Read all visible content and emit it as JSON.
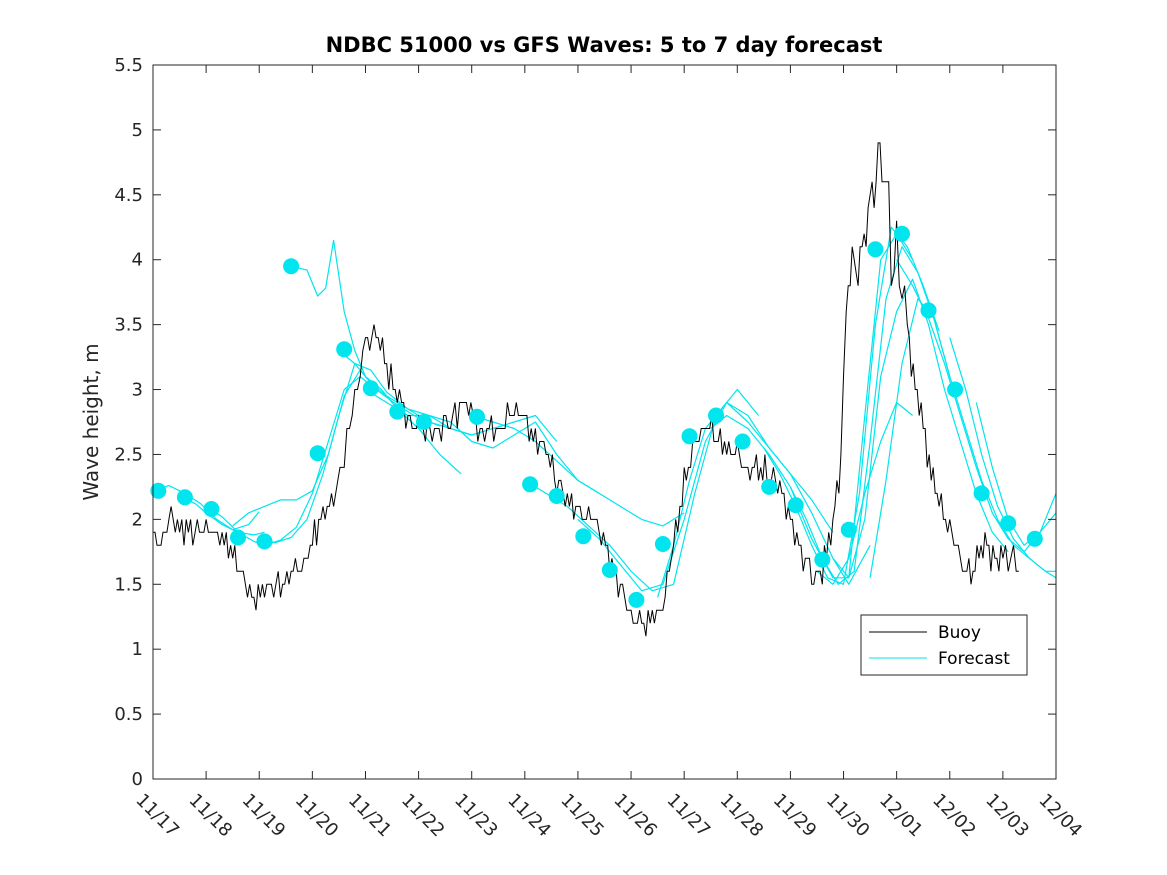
{
  "chart_data": {
    "type": "line",
    "title": "NDBC 51000 vs GFS Waves: 5 to 7 day forecast",
    "xlabel": "",
    "ylabel": "Wave height, m",
    "ylim": [
      0,
      5.5
    ],
    "yticks": [
      0,
      0.5,
      1,
      1.5,
      2,
      2.5,
      3,
      3.5,
      4,
      4.5,
      5,
      5.5
    ],
    "ytick_labels": [
      "0",
      "0.5",
      "1",
      "1.5",
      "2",
      "2.5",
      "3",
      "3.5",
      "4",
      "4.5",
      "5",
      "5.5"
    ],
    "xlim": [
      0,
      17
    ],
    "x_unit": "days since 11/17",
    "x_tick_labels": [
      "11/17",
      "11/18",
      "11/19",
      "11/20",
      "11/21",
      "11/22",
      "11/23",
      "11/24",
      "11/25",
      "11/26",
      "11/27",
      "11/28",
      "11/29",
      "11/30",
      "12/01",
      "12/02",
      "12/03",
      "12/04"
    ],
    "grid": false,
    "legend": {
      "location": "lower-right",
      "entries": [
        "Buoy",
        "Forecast"
      ]
    },
    "colors": {
      "buoy": "#000000",
      "forecast": "#00e5ee",
      "axes": "#262626"
    },
    "series": [
      {
        "name": "Buoy",
        "style": "line",
        "x": [
          0,
          0.15,
          0.3,
          0.5,
          0.75,
          1.0,
          1.3,
          1.5,
          1.7,
          1.9,
          2.1,
          2.4,
          2.6,
          2.8,
          3.0,
          3.2,
          3.4,
          3.6,
          3.7,
          3.8,
          3.9,
          4.0,
          4.2,
          4.4,
          4.6,
          4.8,
          5.0,
          5.3,
          5.6,
          5.9,
          6.2,
          6.5,
          6.8,
          7.0,
          7.2,
          7.4,
          7.6,
          7.8,
          8.0,
          8.2,
          8.4,
          8.6,
          8.8,
          9.0,
          9.2,
          9.4,
          9.6,
          9.8,
          10.0,
          10.2,
          10.4,
          10.6,
          10.8,
          11.0,
          11.2,
          11.4,
          11.6,
          11.8,
          12.0,
          12.2,
          12.4,
          12.6,
          12.8,
          12.95,
          13.05,
          13.2,
          13.35,
          13.5,
          13.65,
          13.8,
          13.9,
          14.0,
          14.1,
          14.2,
          14.35,
          14.5,
          14.65,
          14.8,
          15.0,
          15.2,
          15.4,
          15.55,
          15.7,
          15.85,
          16.0,
          16.1,
          16.2,
          16.3
        ],
        "y": [
          1.9,
          1.8,
          2.0,
          1.9,
          1.9,
          1.9,
          1.8,
          1.7,
          1.6,
          1.4,
          1.5,
          1.5,
          1.6,
          1.6,
          1.8,
          2.0,
          2.2,
          2.5,
          2.7,
          2.9,
          3.2,
          3.3,
          3.4,
          3.2,
          3.0,
          2.8,
          2.7,
          2.7,
          2.8,
          2.9,
          2.6,
          2.7,
          2.9,
          2.8,
          2.6,
          2.5,
          2.3,
          2.2,
          2.1,
          2.0,
          1.9,
          1.7,
          1.5,
          1.3,
          1.2,
          1.2,
          1.3,
          1.8,
          2.3,
          2.6,
          2.7,
          2.6,
          2.5,
          2.6,
          2.4,
          2.4,
          2.3,
          2.2,
          2.0,
          1.8,
          1.6,
          1.6,
          1.9,
          2.5,
          3.6,
          4.1,
          4.0,
          4.4,
          4.9,
          4.5,
          4.1,
          4.0,
          3.8,
          3.5,
          3.0,
          2.7,
          2.4,
          2.1,
          1.9,
          1.7,
          1.6,
          1.7,
          1.8,
          1.7,
          1.7,
          1.7,
          1.7,
          1.6
        ]
      },
      {
        "name": "Forecast",
        "style": "multi-line",
        "runs": [
          {
            "x": [
              0,
              0.3,
              0.6,
              0.9,
              1.2,
              1.5,
              1.8,
              2.0
            ],
            "y": [
              2.22,
              2.26,
              2.2,
              2.12,
              2.0,
              1.92,
              1.96,
              2.06
            ]
          },
          {
            "x": [
              0.5,
              0.8,
              1.0,
              1.3,
              1.6,
              1.9,
              2.1
            ],
            "y": [
              2.18,
              2.12,
              2.05,
              1.96,
              1.9,
              1.88,
              1.9
            ]
          },
          {
            "x": [
              1.0,
              1.3,
              1.6,
              1.9,
              2.1,
              2.4,
              2.7,
              3.0,
              3.3,
              3.6,
              3.9,
              4.2
            ],
            "y": [
              2.1,
              2.02,
              1.9,
              1.83,
              1.8,
              1.84,
              1.94,
              2.2,
              2.6,
              3.0,
              3.1,
              3.0
            ]
          },
          {
            "x": [
              1.5,
              1.8,
              2.1,
              2.4,
              2.7,
              3.0,
              3.3,
              3.6,
              3.9,
              4.2,
              4.6,
              5.0,
              5.4
            ],
            "y": [
              1.95,
              2.05,
              2.1,
              2.15,
              2.15,
              2.22,
              2.5,
              2.95,
              3.15,
              3.0,
              2.88,
              2.78,
              2.72
            ]
          },
          {
            "x": [
              2.0,
              2.3,
              2.6,
              2.9,
              3.2,
              3.5,
              3.8,
              4.1,
              4.4,
              4.8,
              5.2,
              5.6,
              6.0
            ],
            "y": [
              1.85,
              1.82,
              1.86,
              2.0,
              2.35,
              2.8,
              3.2,
              3.15,
              2.98,
              2.85,
              2.75,
              2.7,
              2.65
            ]
          },
          {
            "x": [
              2.6,
              2.9,
              3.1,
              3.25,
              3.4,
              3.6,
              3.8,
              4.0,
              4.3,
              4.6,
              5.0,
              5.4,
              5.8
            ],
            "y": [
              3.95,
              3.92,
              3.72,
              3.78,
              4.15,
              3.6,
              3.3,
              3.1,
              3.0,
              2.85,
              2.7,
              2.5,
              2.35
            ]
          },
          {
            "x": [
              3.5,
              3.8,
              4.1,
              4.4,
              4.8,
              5.2,
              5.6,
              6.0,
              6.4,
              6.8,
              7.2,
              7.6
            ],
            "y": [
              3.3,
              3.2,
              3.05,
              2.95,
              2.85,
              2.8,
              2.7,
              2.65,
              2.7,
              2.75,
              2.8,
              2.6
            ]
          },
          {
            "x": [
              4.0,
              4.4,
              4.8,
              5.2,
              5.6,
              6.0,
              6.4,
              6.8,
              7.2,
              7.6,
              8.0,
              8.4
            ],
            "y": [
              3.0,
              2.9,
              2.8,
              2.8,
              2.75,
              2.6,
              2.55,
              2.65,
              2.75,
              2.5,
              2.3,
              2.2
            ]
          },
          {
            "x": [
              6.0,
              6.4,
              6.8,
              7.2,
              7.6,
              8.0,
              8.4,
              8.8,
              9.2,
              9.6,
              10.0
            ],
            "y": [
              2.8,
              2.75,
              2.7,
              2.6,
              2.45,
              2.3,
              2.2,
              2.1,
              2.0,
              1.95,
              2.05
            ]
          },
          {
            "x": [
              7.0,
              7.4,
              7.8,
              8.2,
              8.6,
              9.0,
              9.4,
              9.8,
              10.2,
              10.6,
              11.0,
              11.4
            ],
            "y": [
              2.3,
              2.2,
              2.1,
              1.95,
              1.8,
              1.6,
              1.45,
              1.5,
              2.2,
              2.8,
              3.0,
              2.8
            ]
          },
          {
            "x": [
              8.0,
              8.4,
              8.8,
              9.2,
              9.6,
              10.0,
              10.4,
              10.8,
              11.2,
              11.6,
              12.0,
              12.4,
              12.8
            ],
            "y": [
              2.0,
              1.85,
              1.65,
              1.45,
              1.5,
              2.0,
              2.6,
              2.9,
              2.8,
              2.55,
              2.35,
              2.15,
              1.9
            ]
          },
          {
            "x": [
              9.5,
              9.8,
              10.1,
              10.4,
              10.8,
              11.2,
              11.6,
              12.0,
              12.4,
              12.8,
              13.1,
              13.5
            ],
            "y": [
              1.4,
              1.8,
              2.3,
              2.7,
              2.9,
              2.75,
              2.55,
              2.35,
              2.05,
              1.7,
              1.5,
              1.8
            ]
          },
          {
            "x": [
              10.5,
              10.8,
              11.2,
              11.6,
              12.0,
              12.4,
              12.8,
              13.1,
              13.4,
              13.7,
              14.0,
              14.3
            ],
            "y": [
              2.7,
              2.8,
              2.7,
              2.5,
              2.25,
              1.85,
              1.55,
              1.55,
              2.8,
              4.0,
              4.2,
              4.0
            ]
          },
          {
            "x": [
              11.5,
              11.8,
              12.1,
              12.4,
              12.7,
              13.0,
              13.3,
              13.6,
              13.9,
              14.2,
              14.5,
              14.8
            ],
            "y": [
              2.55,
              2.35,
              2.1,
              1.8,
              1.55,
              1.5,
              2.2,
              3.5,
              4.25,
              4.1,
              3.8,
              3.45
            ]
          },
          {
            "x": [
              12.0,
              12.3,
              12.6,
              12.9,
              13.2,
              13.5,
              13.8,
              14.1,
              14.4,
              14.7,
              15.0
            ],
            "y": [
              2.25,
              2.0,
              1.7,
              1.5,
              1.6,
              2.6,
              3.7,
              4.1,
              3.9,
              3.55,
              3.1
            ]
          },
          {
            "x": [
              12.8,
              13.1,
              13.4,
              13.7,
              14.0,
              14.3,
              14.6,
              14.9,
              15.2,
              15.5,
              15.8,
              16.1
            ],
            "y": [
              1.7,
              1.55,
              2.0,
              3.1,
              3.6,
              3.85,
              3.5,
              3.0,
              2.6,
              2.2,
              1.9,
              1.75
            ]
          },
          {
            "x": [
              13.5,
              13.8,
              14.1,
              14.4,
              14.7,
              15.0,
              15.3,
              15.6,
              15.9,
              16.2,
              16.5,
              16.8,
              17.0
            ],
            "y": [
              1.55,
              2.3,
              3.2,
              3.7,
              3.55,
              3.1,
              2.7,
              2.3,
              2.0,
              1.8,
              1.7,
              1.6,
              1.6
            ]
          },
          {
            "x": [
              14.0,
              14.3,
              14.6,
              14.9,
              15.2,
              15.5,
              15.8,
              16.1,
              16.4,
              16.7,
              17.0
            ],
            "y": [
              4.0,
              3.8,
              3.55,
              3.2,
              2.8,
              2.4,
              2.05,
              1.85,
              1.75,
              1.9,
              2.2
            ]
          },
          {
            "x": [
              15.0,
              15.3,
              15.6,
              15.9,
              16.2,
              16.5,
              16.8,
              17.0
            ],
            "y": [
              3.4,
              3.0,
              2.5,
              2.1,
              1.85,
              1.7,
              1.6,
              1.55
            ]
          },
          {
            "x": [
              15.5,
              15.8,
              16.1,
              16.4,
              16.7,
              17.0
            ],
            "y": [
              2.9,
              2.4,
              2.0,
              1.8,
              1.9,
              2.05
            ]
          },
          {
            "x": [
              12.5,
              12.8,
              13.1,
              13.4,
              13.7,
              14.0,
              14.3
            ],
            "y": [
              1.6,
              1.5,
              1.7,
              2.2,
              2.6,
              2.9,
              2.8
            ]
          }
        ]
      },
      {
        "name": "Forecast markers",
        "style": "scatter",
        "x": [
          0.1,
          0.6,
          1.1,
          1.6,
          2.1,
          2.6,
          3.1,
          3.6,
          4.1,
          4.6,
          5.1,
          6.1,
          7.1,
          7.6,
          8.1,
          8.6,
          9.1,
          9.6,
          10.1,
          10.6,
          11.1,
          11.6,
          12.1,
          12.6,
          13.1,
          13.6,
          14.1,
          14.6,
          15.1,
          15.6,
          16.1,
          16.6
        ],
        "y": [
          2.22,
          2.17,
          2.08,
          1.86,
          1.83,
          3.95,
          2.51,
          3.31,
          3.01,
          2.83,
          2.75,
          2.79,
          2.27,
          2.18,
          1.87,
          1.61,
          1.38,
          1.81,
          2.64,
          2.8,
          2.6,
          2.25,
          2.11,
          1.69,
          1.92,
          4.08,
          4.2,
          3.61,
          3.0,
          2.2,
          1.97,
          1.85
        ]
      }
    ]
  }
}
